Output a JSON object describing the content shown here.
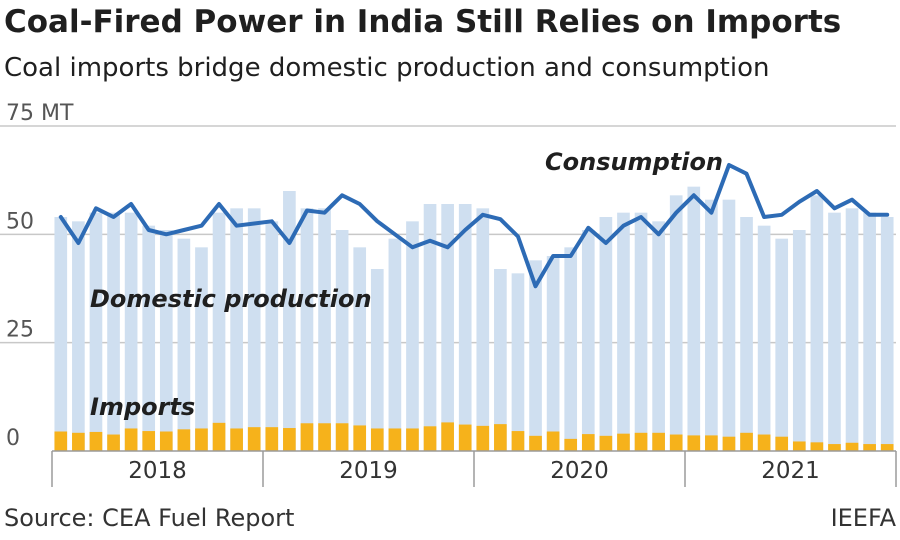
{
  "chart_data": {
    "type": "bar",
    "title": "Coal-Fired Power in India Still Relies on Imports",
    "subtitle": "Coal imports bridge domestic production and consumption",
    "ylim": [
      0,
      75
    ],
    "yticks": [
      0,
      25,
      50
    ],
    "top_tick_label": "75 MT",
    "year_labels": [
      "2018",
      "2019",
      "2020",
      "2021"
    ],
    "months": [
      "2018-01",
      "2018-02",
      "2018-03",
      "2018-04",
      "2018-05",
      "2018-06",
      "2018-07",
      "2018-08",
      "2018-09",
      "2018-10",
      "2018-11",
      "2018-12",
      "2019-01",
      "2019-02",
      "2019-03",
      "2019-04",
      "2019-05",
      "2019-06",
      "2019-07",
      "2019-08",
      "2019-09",
      "2019-10",
      "2019-11",
      "2019-12",
      "2020-01",
      "2020-02",
      "2020-03",
      "2020-04",
      "2020-05",
      "2020-06",
      "2020-07",
      "2020-08",
      "2020-09",
      "2020-10",
      "2020-11",
      "2020-12",
      "2021-01",
      "2021-02",
      "2021-03",
      "2021-04",
      "2021-05",
      "2021-06",
      "2021-07",
      "2021-08",
      "2021-09",
      "2021-10",
      "2021-11",
      "2021-12"
    ],
    "series": [
      {
        "name": "Domestic production",
        "type": "bar",
        "color": "#cfdff0",
        "values": [
          54,
          53,
          55,
          55,
          55,
          52,
          51,
          49,
          47,
          55,
          56,
          56,
          53,
          60,
          56,
          56,
          51,
          47,
          42,
          49,
          53,
          57,
          57,
          57,
          56,
          42,
          41,
          44,
          45,
          47,
          51,
          54,
          55,
          55,
          53,
          59,
          61,
          58,
          58,
          54,
          52,
          49,
          51,
          59,
          55,
          56,
          55,
          54
        ]
      },
      {
        "name": "Imports",
        "type": "bar",
        "color": "#f6b21b",
        "values": [
          4.5,
          4.2,
          4.4,
          3.8,
          5.2,
          4.6,
          4.5,
          5.0,
          5.2,
          6.5,
          5.2,
          5.5,
          5.5,
          5.3,
          6.4,
          6.4,
          6.4,
          5.9,
          5.2,
          5.2,
          5.2,
          5.7,
          6.6,
          6.1,
          5.8,
          6.2,
          4.6,
          3.5,
          4.5,
          2.8,
          3.9,
          3.5,
          4.0,
          4.2,
          4.2,
          3.8,
          3.6,
          3.6,
          3.3,
          4.2,
          3.8,
          3.3,
          2.2,
          2.0,
          1.6,
          1.9,
          1.6,
          1.6
        ]
      },
      {
        "name": "Consumption",
        "type": "line",
        "color": "#2d6bb5",
        "values": [
          54,
          48,
          56,
          54,
          57,
          51,
          50,
          51,
          52,
          57,
          52,
          52.5,
          53,
          48,
          55.5,
          55,
          59,
          57,
          53,
          50,
          47,
          48.5,
          47,
          51,
          54.5,
          53.5,
          49.5,
          38,
          45,
          45,
          51.5,
          48,
          52,
          54,
          50,
          55,
          59,
          55,
          66,
          64,
          54,
          54.5,
          57.5,
          60,
          56,
          58,
          54.5,
          54.5
        ]
      }
    ],
    "annotations": {
      "consumption": "Consumption",
      "domestic": "Domestic production",
      "imports": "Imports"
    },
    "grid": true
  },
  "footer": {
    "source": "Source: CEA Fuel Report",
    "credit": "IEEFA"
  }
}
